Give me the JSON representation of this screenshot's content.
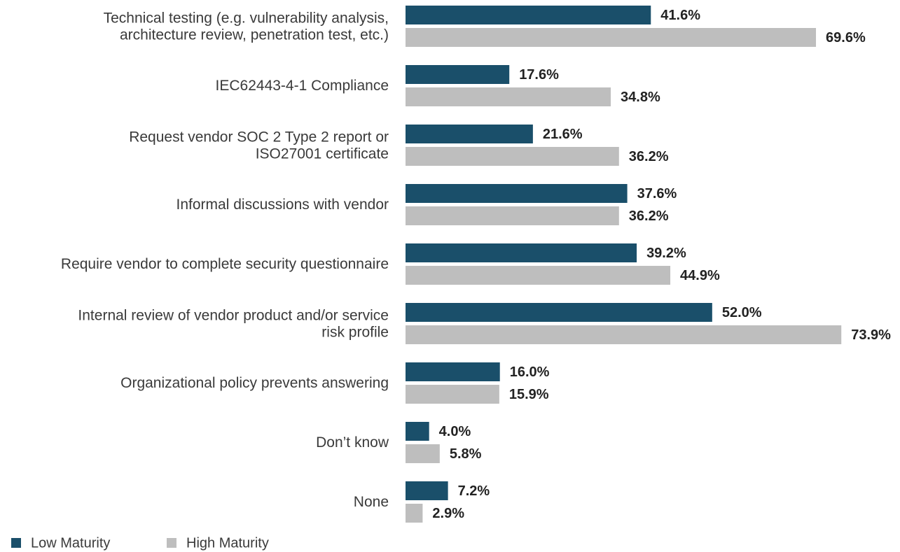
{
  "chart_data": {
    "type": "bar",
    "orientation": "horizontal",
    "categories": [
      "Technical testing (e.g. vulnerability analysis,\narchitecture review, penetration test, etc.)",
      "IEC62443-4-1 Compliance",
      "Request vendor SOC 2 Type 2 report or\nISO27001 certificate",
      "Informal discussions with vendor",
      "Require vendor to complete security questionnaire",
      "Internal review of vendor product and/or service\nrisk profile",
      "Organizational policy prevents answering",
      "Don’t know",
      "None"
    ],
    "series": [
      {
        "name": "Low Maturity",
        "color": "#1a4f6a",
        "values": [
          41.6,
          17.6,
          21.6,
          37.6,
          39.2,
          52.0,
          16.0,
          4.0,
          7.2
        ],
        "value_labels": [
          "41.6%",
          "17.6%",
          "21.6%",
          "37.6%",
          "39.2%",
          "52.0%",
          "16.0%",
          "4.0%",
          "7.2%"
        ]
      },
      {
        "name": "High Maturity",
        "color": "#bebebe",
        "values": [
          69.6,
          34.8,
          36.2,
          36.2,
          44.9,
          73.9,
          15.9,
          5.8,
          2.9
        ],
        "value_labels": [
          "69.6%",
          "34.8%",
          "36.2%",
          "36.2%",
          "44.9%",
          "73.9%",
          "15.9%",
          "5.8%",
          "2.9%"
        ]
      }
    ]
  }
}
